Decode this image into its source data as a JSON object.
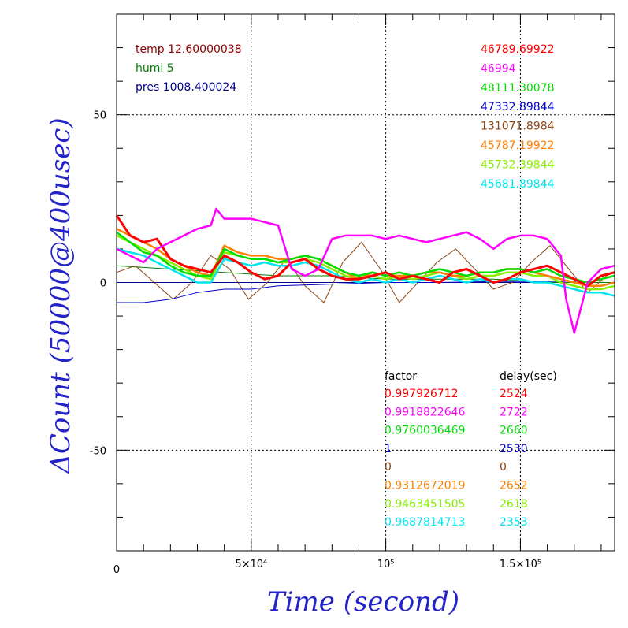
{
  "chart_data": {
    "type": "line",
    "title": "",
    "xlabel": "Time (second)",
    "ylabel": "ΔCount (50000@400usec)",
    "xlim": [
      0,
      185000
    ],
    "ylim": [
      -80,
      80
    ],
    "x_ticks": [
      {
        "value": 0,
        "label": "0"
      },
      {
        "value": 50000,
        "label": "5×10⁴"
      },
      {
        "value": 100000,
        "label": "10⁵"
      },
      {
        "value": 150000,
        "label": "1.5×10⁵"
      }
    ],
    "y_ticks": [
      {
        "value": 50,
        "label": "50"
      },
      {
        "value": 0,
        "label": "0"
      },
      {
        "value": -50,
        "label": "-50"
      }
    ],
    "grid": "dotted at major ticks",
    "env_legend": [
      {
        "text": "temp 12.60000038",
        "color": "#8b0000"
      },
      {
        "text": "humi 5",
        "color": "#008000"
      },
      {
        "text": "pres 1008.400024",
        "color": "#00008b"
      }
    ],
    "factor_header": "factor",
    "delay_header": "delay(sec)",
    "series": [
      {
        "value_label": "46789.69922",
        "factor": "0.997926712",
        "delay": "2524",
        "color": "#ff0000",
        "x": [
          0,
          5000,
          10000,
          15000,
          20000,
          25000,
          30000,
          35000,
          40000,
          45000,
          50000,
          55000,
          60000,
          65000,
          70000,
          75000,
          80000,
          85000,
          90000,
          95000,
          100000,
          105000,
          110000,
          115000,
          120000,
          125000,
          130000,
          135000,
          140000,
          145000,
          150000,
          155000,
          160000,
          165000,
          170000,
          175000,
          180000,
          185000
        ],
        "y": [
          20,
          14,
          12,
          13,
          7,
          5,
          4,
          3,
          8,
          6,
          3,
          1,
          2,
          6,
          7,
          4,
          2,
          1,
          1,
          2,
          3,
          1,
          2,
          1,
          0,
          3,
          4,
          2,
          0,
          1,
          3,
          4,
          5,
          3,
          1,
          -1,
          2,
          3
        ]
      },
      {
        "value_label": "46994",
        "factor": "0.9918822646",
        "delay": "2722",
        "color": "#ff00ff",
        "x": [
          0,
          5000,
          10000,
          15000,
          20000,
          25000,
          30000,
          35000,
          37000,
          40000,
          45000,
          50000,
          55000,
          60000,
          65000,
          70000,
          75000,
          80000,
          85000,
          90000,
          95000,
          100000,
          105000,
          110000,
          115000,
          120000,
          125000,
          130000,
          135000,
          140000,
          145000,
          150000,
          155000,
          160000,
          165000,
          167000,
          170000,
          175000,
          180000,
          185000
        ],
        "y": [
          10,
          8,
          6,
          10,
          12,
          14,
          16,
          17,
          22,
          19,
          19,
          19,
          18,
          17,
          4,
          2,
          4,
          13,
          14,
          14,
          14,
          13,
          14,
          13,
          12,
          13,
          14,
          15,
          13,
          10,
          13,
          14,
          14,
          13,
          8,
          -5,
          -15,
          0,
          4,
          5
        ]
      },
      {
        "value_label": "48111.30078",
        "factor": "0.9760036469",
        "delay": "2660",
        "color": "#00dd00",
        "x": [
          0,
          5000,
          10000,
          15000,
          20000,
          25000,
          30000,
          35000,
          40000,
          45000,
          50000,
          55000,
          60000,
          65000,
          70000,
          75000,
          80000,
          85000,
          90000,
          95000,
          100000,
          105000,
          110000,
          115000,
          120000,
          125000,
          130000,
          135000,
          140000,
          145000,
          150000,
          155000,
          160000,
          165000,
          170000,
          175000,
          180000,
          185000
        ],
        "y": [
          15,
          12,
          9,
          8,
          5,
          3,
          2,
          2,
          10,
          8,
          7,
          7,
          6,
          7,
          8,
          7,
          5,
          3,
          2,
          3,
          2,
          3,
          2,
          3,
          4,
          3,
          2,
          3,
          3,
          4,
          4,
          3,
          4,
          2,
          1,
          0,
          1,
          2
        ]
      },
      {
        "value_label": "47332.89844",
        "factor": "1",
        "delay": "2530",
        "color": "#0000cd",
        "x": [
          0,
          10000,
          20000,
          30000,
          40000,
          50000,
          60000,
          80000,
          100000,
          120000,
          140000,
          160000,
          185000
        ],
        "y": [
          -6,
          -6,
          -5,
          -3,
          -2,
          -2,
          -1,
          -0.5,
          0,
          0,
          0.3,
          0.3,
          0.5
        ]
      },
      {
        "value_label": "131071.8984",
        "factor": "0",
        "delay": "0",
        "color": "#8b4513",
        "x": [
          0,
          7000,
          14000,
          21000,
          28000,
          35000,
          42000,
          49000,
          56000,
          63000,
          70000,
          77000,
          84000,
          91000,
          98000,
          105000,
          112000,
          119000,
          126000,
          133000,
          140000,
          147000,
          154000,
          161000,
          168000,
          175000,
          182000,
          185000
        ],
        "y": [
          3,
          5,
          0,
          -5,
          0,
          8,
          4,
          -5,
          0,
          7,
          -1,
          -6,
          6,
          12,
          4,
          -6,
          0,
          6,
          10,
          4,
          -2,
          0,
          6,
          11,
          4,
          -3,
          2,
          3
        ]
      },
      {
        "value_label": "45787.19922",
        "factor": "0.9312672019",
        "delay": "2652",
        "color": "#ff8000",
        "x": [
          0,
          5000,
          10000,
          15000,
          20000,
          25000,
          30000,
          35000,
          40000,
          45000,
          50000,
          55000,
          60000,
          65000,
          70000,
          75000,
          80000,
          85000,
          90000,
          95000,
          100000,
          105000,
          110000,
          115000,
          120000,
          125000,
          130000,
          135000,
          140000,
          145000,
          150000,
          155000,
          160000,
          165000,
          170000,
          175000,
          180000,
          185000
        ],
        "y": [
          16,
          14,
          12,
          10,
          7,
          5,
          3,
          2,
          11,
          9,
          8,
          8,
          7,
          7,
          8,
          7,
          5,
          3,
          1,
          3,
          2,
          2,
          2,
          3,
          3,
          2,
          2,
          3,
          3,
          4,
          4,
          3,
          2,
          1,
          0,
          -1,
          -1,
          0
        ]
      },
      {
        "value_label": "45732.39844",
        "factor": "0.9463451505",
        "delay": "2618",
        "color": "#88ee00",
        "x": [
          0,
          5000,
          10000,
          15000,
          20000,
          25000,
          30000,
          35000,
          40000,
          45000,
          50000,
          55000,
          60000,
          65000,
          70000,
          75000,
          80000,
          85000,
          90000,
          95000,
          100000,
          105000,
          110000,
          115000,
          120000,
          125000,
          130000,
          135000,
          140000,
          145000,
          150000,
          155000,
          160000,
          165000,
          170000,
          175000,
          180000,
          185000
        ],
        "y": [
          14,
          12,
          10,
          8,
          6,
          4,
          2,
          1,
          9,
          8,
          7,
          7,
          6,
          6,
          7,
          6,
          4,
          2,
          1,
          2,
          1,
          2,
          1,
          2,
          3,
          2,
          1,
          2,
          2,
          3,
          3,
          2,
          2,
          0,
          -1,
          -2,
          -2,
          -1
        ]
      },
      {
        "value_label": "45681.89844",
        "factor": "0.9687814713",
        "delay": "2353",
        "color": "#00e5ee",
        "x": [
          0,
          5000,
          10000,
          15000,
          20000,
          25000,
          30000,
          35000,
          40000,
          45000,
          50000,
          55000,
          60000,
          65000,
          70000,
          75000,
          80000,
          85000,
          90000,
          95000,
          100000,
          105000,
          110000,
          115000,
          120000,
          125000,
          130000,
          135000,
          140000,
          145000,
          150000,
          155000,
          160000,
          165000,
          170000,
          175000,
          180000,
          185000
        ],
        "y": [
          10,
          9,
          8,
          6,
          4,
          2,
          0,
          0,
          7,
          6,
          5,
          6,
          5,
          5,
          6,
          5,
          3,
          1,
          0,
          1,
          0,
          1,
          0,
          1,
          2,
          1,
          0,
          1,
          0,
          1,
          1,
          0,
          0,
          -1,
          -2,
          -3,
          -3,
          -4
        ]
      }
    ],
    "env_series": [
      {
        "name": "humi",
        "color": "#008000",
        "x": [
          0,
          20000,
          40000,
          60000,
          80000,
          100000,
          120000,
          140000,
          160000,
          185000
        ],
        "y": [
          5,
          4,
          3,
          2,
          2,
          1,
          1,
          1,
          0,
          0
        ]
      }
    ]
  }
}
